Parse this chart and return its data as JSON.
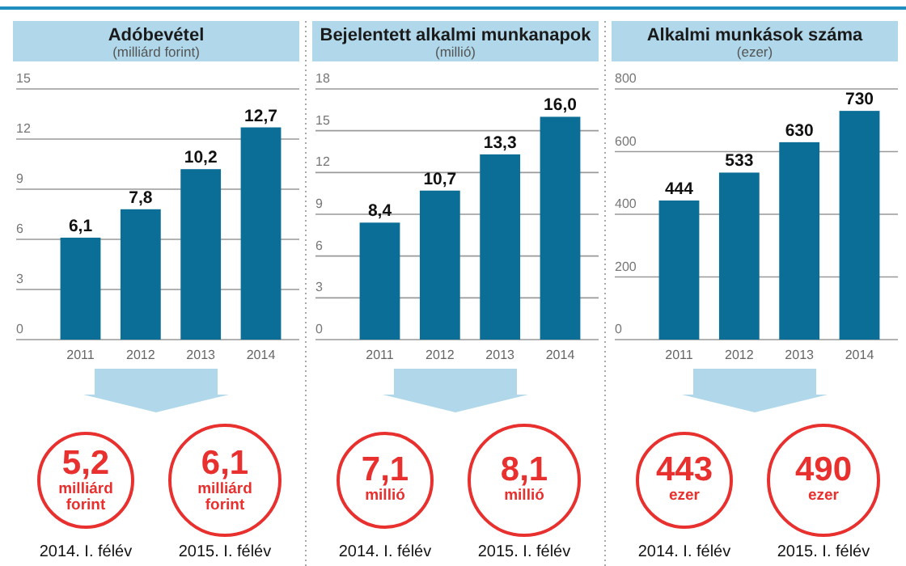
{
  "chart_data": [
    {
      "type": "bar",
      "title": "Adóbevétel",
      "subtitle": "(milliárd forint)",
      "categories": [
        "2011",
        "2012",
        "2013",
        "2014"
      ],
      "values": [
        6.1,
        7.8,
        10.2,
        12.7
      ],
      "value_labels": [
        "6,1",
        "7,8",
        "10,2",
        "12,7"
      ],
      "color": "#0b6e97",
      "ylim": [
        0,
        15
      ],
      "yticks": [
        0,
        3,
        6,
        9,
        12,
        15
      ],
      "grid": "y",
      "annotations": [
        "5,2",
        "milliárd forint",
        "2014. I. félév",
        "6,1",
        "milliárd forint",
        "2015. I. félév"
      ]
    },
    {
      "type": "bar",
      "title": "Bejelentett alkalmi munkanapok",
      "subtitle": "(millió)",
      "categories": [
        "2011",
        "2012",
        "2013",
        "2014"
      ],
      "values": [
        8.4,
        10.7,
        13.3,
        16.0
      ],
      "value_labels": [
        "8,4",
        "10,7",
        "13,3",
        "16,0"
      ],
      "color": "#0b6e97",
      "ylim": [
        0,
        18
      ],
      "yticks": [
        0,
        3,
        6,
        9,
        12,
        15,
        18
      ],
      "grid": "y",
      "annotations": [
        "7,1",
        "millió",
        "2014. I. félév",
        "8,1",
        "millió",
        "2015. I. félév"
      ]
    },
    {
      "type": "bar",
      "title": "Alkalmi munkások száma",
      "subtitle": "(ezer)",
      "categories": [
        "2011",
        "2012",
        "2013",
        "2014"
      ],
      "values": [
        444,
        533,
        630,
        730
      ],
      "value_labels": [
        "444",
        "533",
        "630",
        "730"
      ],
      "color": "#0b6e97",
      "ylim": [
        0,
        800
      ],
      "yticks": [
        0,
        200,
        400,
        600,
        800
      ],
      "grid": "y",
      "annotations": [
        "443",
        "ezer",
        "2014. I. félév",
        "490",
        "ezer",
        "2015. I. félév"
      ]
    }
  ]
}
